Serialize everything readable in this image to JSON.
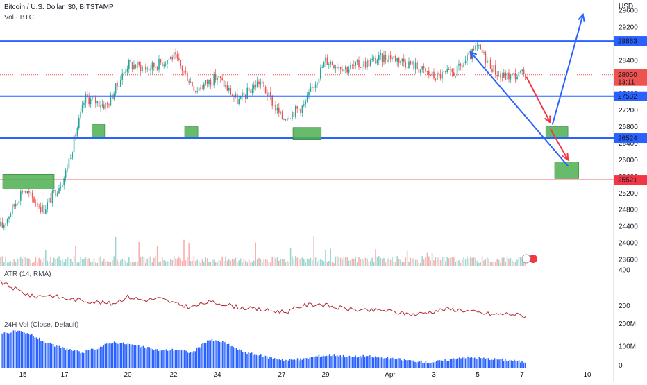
{
  "header": {
    "symbol_title": "Bitcoin / U.S. Dollar, 30, BITSTAMP",
    "volume_legend": "Vol · BTC",
    "atr_legend": "ATR (14, RMA)",
    "vol24_legend": "24H Vol (Close, Default)"
  },
  "colors": {
    "up": "#26a69a",
    "down": "#ef5350",
    "level_line": "#2962ff",
    "support_line": "#f23645",
    "zone_fill": "#4caf50",
    "atr_line": "#b22833",
    "vol24_fill": "#2962ff",
    "arrow_red": "#f23645",
    "arrow_blue": "#2962ff"
  },
  "chart_data": [
    {
      "type": "line",
      "title": "Bitcoin / U.S. Dollar, 30, BITSTAMP",
      "unit": "USD",
      "x_labels": [
        "15",
        "17",
        "20",
        "22",
        "24",
        "27",
        "29",
        "Apr",
        "3",
        "5",
        "7",
        "10"
      ],
      "y_ticks": [
        23600,
        24000,
        24400,
        24800,
        25200,
        25600,
        26000,
        26400,
        26800,
        27200,
        27600,
        28000,
        28400,
        28800,
        29200,
        29600
      ],
      "ylim": [
        23450,
        29850
      ],
      "price_points": [
        {
          "x": "14",
          "y": 24400
        },
        {
          "x": "15",
          "y": 25300
        },
        {
          "x": "16",
          "y": 24800
        },
        {
          "x": "17",
          "y": 25600
        },
        {
          "x": "18",
          "y": 27500
        },
        {
          "x": "19",
          "y": 27300
        },
        {
          "x": "20",
          "y": 28300
        },
        {
          "x": "21",
          "y": 28200
        },
        {
          "x": "22",
          "y": 28500
        },
        {
          "x": "23",
          "y": 27700
        },
        {
          "x": "24",
          "y": 28000
        },
        {
          "x": "25",
          "y": 27400
        },
        {
          "x": "26",
          "y": 27900
        },
        {
          "x": "27",
          "y": 27000
        },
        {
          "x": "28",
          "y": 27300
        },
        {
          "x": "29",
          "y": 28400
        },
        {
          "x": "30",
          "y": 28200
        },
        {
          "x": "Apr",
          "y": 28500
        },
        {
          "x": "2",
          "y": 28300
        },
        {
          "x": "3",
          "y": 28000
        },
        {
          "x": "4",
          "y": 28100
        },
        {
          "x": "5",
          "y": 28700
        },
        {
          "x": "6",
          "y": 28000
        },
        {
          "x": "7",
          "y": 28050
        }
      ],
      "levels": [
        {
          "label": "28863",
          "y": 28863,
          "kind": "resistance"
        },
        {
          "label": "27532",
          "y": 27532,
          "kind": "level"
        },
        {
          "label": "26524",
          "y": 26524,
          "kind": "level"
        },
        {
          "label": "25521",
          "y": 25521,
          "kind": "support"
        }
      ],
      "last_price": {
        "label": "28050",
        "countdown": "13:11",
        "y": 28050
      },
      "zones": [
        {
          "from": "14",
          "to": "16.5",
          "low": 25300,
          "high": 25650
        },
        {
          "from": "18.3",
          "to": "18.9",
          "low": 26550,
          "high": 26850
        },
        {
          "from": "22.5",
          "to": "23.1",
          "low": 26550,
          "high": 26800
        },
        {
          "from": "27.5",
          "to": "28.8",
          "low": 26480,
          "high": 26780
        },
        {
          "from": "8.1",
          "to": "9.1",
          "low": 26550,
          "high": 26800
        },
        {
          "from": "8.5",
          "to": "9.6",
          "low": 25550,
          "high": 25950
        }
      ],
      "projection_arrows": [
        {
          "color": "red",
          "from": {
            "x": "7.2",
            "y": 28000
          },
          "to": {
            "x": "8.3",
            "y": 26900
          }
        },
        {
          "color": "red",
          "from": {
            "x": "8.3",
            "y": 26750
          },
          "to": {
            "x": "9.1",
            "y": 26000
          }
        },
        {
          "color": "blue",
          "from": {
            "x": "8.4",
            "y": 26850
          },
          "to": {
            "x": "9.8",
            "y": 29500
          }
        },
        {
          "color": "blue",
          "from": {
            "x": "9.1",
            "y": 25850
          },
          "to": {
            "x": "10.2",
            "y": 28600
          }
        }
      ]
    },
    {
      "type": "line",
      "title": "ATR (14, RMA)",
      "y_ticks": [
        200,
        400
      ],
      "ylim": [
        120,
        420
      ],
      "values": [
        330,
        290,
        250,
        260,
        240,
        230,
        220,
        210,
        250,
        230,
        240,
        210,
        190,
        220,
        210,
        190,
        180,
        170,
        165,
        200,
        210,
        190,
        180,
        170,
        175,
        160,
        150,
        165,
        180,
        175,
        160,
        150,
        155,
        140
      ]
    },
    {
      "type": "area",
      "title": "24H Vol (Close, Default)",
      "y_ticks": [
        "0",
        "100M",
        "200M"
      ],
      "ylim": [
        0,
        220
      ],
      "values": [
        160,
        170,
        150,
        110,
        90,
        70,
        90,
        120,
        110,
        95,
        80,
        85,
        70,
        130,
        120,
        80,
        60,
        45,
        35,
        40,
        55,
        60,
        50,
        55,
        45,
        40,
        30,
        25,
        35,
        50,
        45,
        40,
        35,
        25
      ]
    }
  ]
}
